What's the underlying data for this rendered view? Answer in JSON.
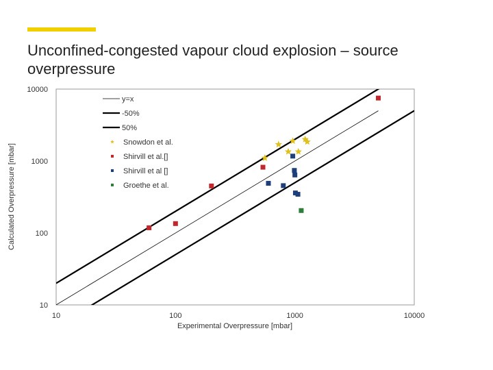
{
  "slide": {
    "title": "Unconfined-congested vapour cloud explosion – source overpressure",
    "accent_color": "#f2d000"
  },
  "chart_data": {
    "type": "scatter",
    "xscale": "log",
    "yscale": "log",
    "xlabel": "Experimental Overpressure [mbar]",
    "ylabel": "Calculated Overpressure [mbar]",
    "xlim": [
      10,
      10000
    ],
    "ylim": [
      10,
      10000
    ],
    "xticks": [
      "10",
      "100",
      "1000",
      "10000"
    ],
    "yticks": [
      "10",
      "100",
      "1000",
      "10000"
    ],
    "grid": false,
    "legend_position": "top-left",
    "lines": [
      {
        "name": "y=x",
        "factor": 1,
        "color": "#000000",
        "width": 0.8,
        "x": [
          10,
          5000
        ]
      },
      {
        "name": "-50%",
        "factor": 0.5,
        "color": "#000000",
        "width": 2.2,
        "x": [
          10,
          10000
        ]
      },
      {
        "name": "50%",
        "factor": 2,
        "color": "#000000",
        "width": 2.2,
        "x": [
          10,
          10000
        ]
      }
    ],
    "series": [
      {
        "name": "Snowdon et al.",
        "color": "#e0c020",
        "marker": "star",
        "points": [
          [
            560,
            1100
          ],
          [
            730,
            1700
          ],
          [
            880,
            1350
          ],
          [
            960,
            1900
          ],
          [
            1070,
            1350
          ],
          [
            1220,
            2000
          ],
          [
            1270,
            1850
          ]
        ]
      },
      {
        "name": "Shirvill et al.[]",
        "color": "#c0282d",
        "marker": "square",
        "points": [
          [
            60,
            118
          ],
          [
            100,
            135
          ],
          [
            200,
            450
          ],
          [
            540,
            820
          ],
          [
            5000,
            7500
          ]
        ]
      },
      {
        "name": "Shirvill et al []",
        "color": "#1f3f7a",
        "marker": "square",
        "points": [
          [
            600,
            490
          ],
          [
            800,
            455
          ],
          [
            960,
            1170
          ],
          [
            990,
            740
          ],
          [
            1000,
            640
          ],
          [
            1010,
            360
          ],
          [
            1060,
            345
          ]
        ]
      },
      {
        "name": "Groethe et al.",
        "color": "#2e7d3a",
        "marker": "square",
        "points": [
          [
            1130,
            205
          ]
        ]
      }
    ]
  }
}
